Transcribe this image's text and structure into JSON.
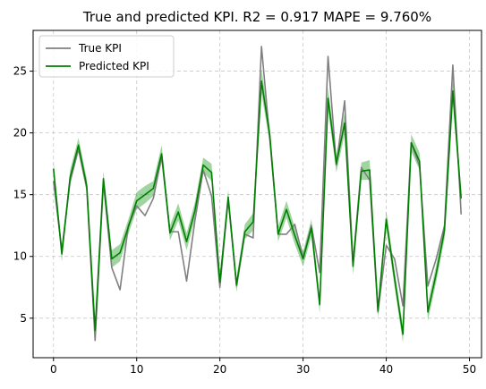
{
  "chart_data": {
    "type": "line",
    "title": "True and predicted KPI. R2 = 0.917 MAPE = 9.760%",
    "xlabel": "",
    "ylabel": "",
    "xlim": [
      -2.45,
      51.45
    ],
    "ylim": [
      1.8,
      28.3
    ],
    "xticks": [
      0,
      10,
      20,
      30,
      40,
      50
    ],
    "yticks": [
      5,
      10,
      15,
      20,
      25
    ],
    "grid": true,
    "legend_position": "top-left",
    "x": [
      0,
      1,
      2,
      3,
      4,
      5,
      6,
      7,
      8,
      9,
      10,
      11,
      12,
      13,
      14,
      15,
      16,
      17,
      18,
      19,
      20,
      21,
      22,
      23,
      24,
      25,
      26,
      27,
      28,
      29,
      30,
      31,
      32,
      33,
      34,
      35,
      36,
      37,
      38,
      39,
      40,
      41,
      42,
      43,
      44,
      45,
      46,
      47,
      48,
      49
    ],
    "series": [
      {
        "name": "True KPI",
        "color": "#808080",
        "values": [
          16.1,
          10.5,
          16.1,
          18.7,
          15.5,
          3.2,
          16.0,
          9.1,
          7.3,
          12.5,
          14.1,
          13.3,
          14.7,
          18.1,
          12.0,
          12.0,
          8.0,
          12.9,
          17.0,
          14.9,
          7.5,
          14.6,
          7.6,
          11.8,
          11.5,
          27.0,
          19.5,
          11.8,
          11.8,
          12.6,
          9.9,
          12.5,
          8.7,
          26.2,
          17.4,
          22.6,
          9.5,
          17.2,
          16.2,
          5.5,
          10.9,
          9.8,
          6.0,
          19.2,
          17.3,
          7.6,
          9.8,
          12.5,
          25.5,
          13.4
        ]
      },
      {
        "name": "Predicted KPI",
        "color": "#008000",
        "band_color": "#2ca02c",
        "values": [
          17.1,
          10.2,
          16.4,
          19.0,
          15.7,
          4.0,
          16.3,
          9.8,
          10.3,
          12.4,
          14.5,
          15.0,
          15.5,
          18.3,
          11.9,
          13.6,
          11.2,
          13.7,
          17.4,
          16.8,
          7.9,
          14.8,
          7.7,
          12.0,
          12.8,
          24.2,
          19.8,
          11.8,
          13.8,
          11.7,
          9.8,
          12.3,
          6.1,
          22.8,
          17.5,
          20.8,
          9.2,
          16.9,
          17.0,
          5.6,
          13.0,
          8.2,
          3.7,
          19.2,
          17.7,
          5.5,
          8.6,
          12.1,
          23.4,
          14.7
        ],
        "band_lower": [
          16.5,
          9.6,
          15.8,
          18.4,
          15.2,
          3.4,
          15.7,
          9.1,
          9.6,
          11.8,
          13.8,
          14.3,
          14.9,
          17.6,
          11.3,
          12.9,
          10.5,
          13.0,
          16.8,
          16.1,
          7.3,
          14.2,
          7.1,
          11.4,
          12.1,
          23.2,
          19.1,
          11.2,
          13.1,
          11.0,
          9.2,
          11.6,
          5.4,
          21.9,
          16.8,
          19.9,
          8.5,
          16.2,
          16.2,
          5.0,
          12.3,
          7.5,
          3.0,
          18.5,
          17.0,
          4.8,
          7.9,
          11.4,
          22.4,
          14.0
        ],
        "band_upper": [
          17.7,
          10.8,
          17.0,
          19.6,
          16.3,
          4.6,
          16.9,
          10.5,
          11.0,
          13.0,
          15.2,
          15.7,
          16.1,
          19.0,
          12.5,
          14.3,
          11.9,
          14.4,
          18.0,
          17.5,
          8.5,
          15.4,
          8.3,
          12.6,
          13.5,
          25.2,
          20.5,
          12.4,
          14.5,
          12.4,
          10.4,
          13.0,
          6.8,
          23.7,
          18.2,
          21.7,
          9.9,
          17.6,
          17.8,
          6.2,
          13.7,
          8.9,
          4.4,
          19.9,
          18.4,
          6.2,
          9.3,
          12.8,
          24.4,
          15.4
        ]
      }
    ]
  }
}
